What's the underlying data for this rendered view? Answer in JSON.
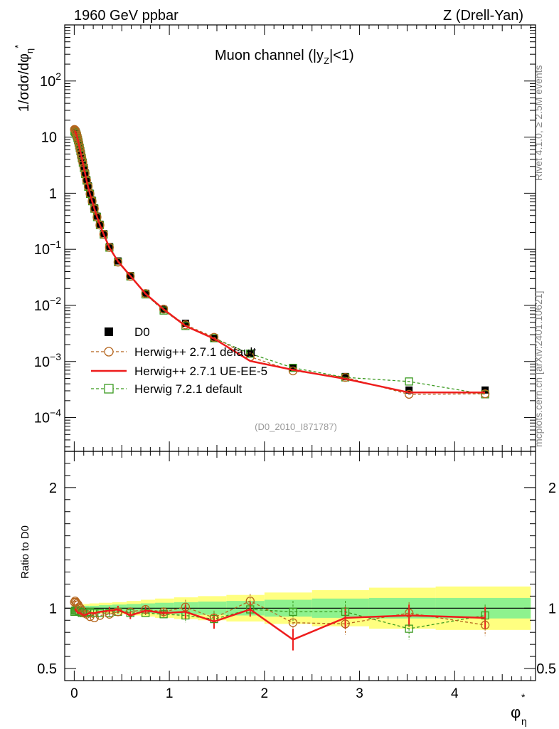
{
  "header": {
    "left": "1960 GeV ppbar",
    "right": "Z (Drell-Yan)",
    "panel_title": "Muon channel (|y",
    "panel_title_sub": "Z",
    "panel_title_tail": "|<1)",
    "analysis_tag": "(D0_2010_I871787)",
    "side_top": "Rivet 4.1.0, ≥ 2.5M events",
    "side_bottom": "mcplots.cern.ch [arXiv:2401.10621]"
  },
  "chart_data": {
    "type": "line",
    "title": "Muon channel (|y_Z|<1)",
    "ylabel_main": "1/σdσ/dφ*_η",
    "ylabel_ratio": "Ratio to D0",
    "xlabel": "φ*_η",
    "xlim": [
      -0.1,
      4.85
    ],
    "ylim_main": [
      2.5e-05,
      1000
    ],
    "ylim_ratio": [
      0.4,
      2.3
    ],
    "x_ticks": [
      0,
      1,
      2,
      3,
      4
    ],
    "x_tick_labels": [
      "0",
      "1",
      "2",
      "3",
      "4"
    ],
    "y_ticks_main": [
      {
        "label": "10",
        "sup": "2",
        "value": 100
      },
      {
        "label": "10",
        "sup": "",
        "value": 10
      },
      {
        "label": "1",
        "sup": "",
        "value": 1
      },
      {
        "label": "10",
        "sup": "−1",
        "value": 0.1
      },
      {
        "label": "10",
        "sup": "−2",
        "value": 0.01
      },
      {
        "label": "10",
        "sup": "−3",
        "value": 0.001
      },
      {
        "label": "10",
        "sup": "−4",
        "value": 0.0001
      }
    ],
    "y_ticks_ratio": [
      {
        "label": "2",
        "value": 2
      },
      {
        "label": "1",
        "value": 1
      },
      {
        "label": "0.5",
        "value": 0.5
      }
    ],
    "x": [
      0.002,
      0.006,
      0.01,
      0.014,
      0.019,
      0.024,
      0.029,
      0.034,
      0.04,
      0.046,
      0.052,
      0.058,
      0.065,
      0.072,
      0.08,
      0.09,
      0.102,
      0.115,
      0.13,
      0.147,
      0.166,
      0.188,
      0.212,
      0.24,
      0.27,
      0.31,
      0.37,
      0.46,
      0.59,
      0.75,
      0.94,
      1.17,
      1.47,
      1.85,
      2.3,
      2.85,
      3.52,
      4.32
    ],
    "series": [
      {
        "name": "D0",
        "marker": "filled-square",
        "color": "#000000",
        "values": [
          13.0,
          12.9,
          12.7,
          12.4,
          11.9,
          11.3,
          10.6,
          9.9,
          9.0,
          8.1,
          7.2,
          6.5,
          5.7,
          5.0,
          4.3,
          3.6,
          2.9,
          2.3,
          1.75,
          1.35,
          1.0,
          0.75,
          0.55,
          0.39,
          0.28,
          0.19,
          0.112,
          0.062,
          0.034,
          0.0165,
          0.0085,
          0.0048,
          0.0026,
          0.00138,
          0.00078,
          0.00054,
          0.00031,
          0.00031
        ]
      },
      {
        "name": "Herwig++ 2.7.1 default",
        "marker": "open-circle",
        "color": "#b5651d",
        "dashed": true,
        "values": [
          13.7,
          13.6,
          13.3,
          12.9,
          12.4,
          11.7,
          10.9,
          10.1,
          9.2,
          8.2,
          7.3,
          6.5,
          5.7,
          5.0,
          4.25,
          3.55,
          2.85,
          2.25,
          1.7,
          1.32,
          0.97,
          0.72,
          0.53,
          0.375,
          0.27,
          0.185,
          0.108,
          0.059,
          0.033,
          0.0163,
          0.0086,
          0.0045,
          0.0027,
          0.00121,
          0.00068,
          0.00052,
          0.00026,
          0.000265
        ]
      },
      {
        "name": "Herwig++ 2.7.1 UE-EE-5",
        "marker": "line",
        "color": "#ee1c1c",
        "values": [
          12.9,
          12.8,
          12.5,
          12.0,
          11.5,
          10.9,
          10.2,
          9.5,
          8.7,
          7.9,
          7.0,
          6.3,
          5.5,
          4.8,
          4.15,
          3.5,
          2.8,
          2.2,
          1.67,
          1.28,
          0.96,
          0.72,
          0.53,
          0.375,
          0.27,
          0.185,
          0.107,
          0.061,
          0.0335,
          0.0161,
          0.0085,
          0.0043,
          0.00255,
          0.00102,
          0.00071,
          0.00049,
          0.00028,
          0.00028
        ]
      },
      {
        "name": "Herwig 7.2.1 default",
        "marker": "open-square",
        "color": "#3a9a1f",
        "dashed": true,
        "values": [
          12.7,
          12.6,
          12.4,
          12.1,
          11.6,
          11.0,
          10.3,
          9.6,
          8.8,
          8.0,
          7.1,
          6.4,
          5.6,
          4.9,
          4.2,
          3.5,
          2.8,
          2.2,
          1.68,
          1.3,
          0.97,
          0.72,
          0.53,
          0.375,
          0.27,
          0.183,
          0.107,
          0.059,
          0.0328,
          0.0157,
          0.0081,
          0.0043,
          0.0026,
          0.00138,
          0.00077,
          0.00052,
          0.00044,
          0.00026
        ]
      }
    ],
    "ratio": {
      "x": [
        0.002,
        0.01,
        0.019,
        0.029,
        0.04,
        0.052,
        0.065,
        0.08,
        0.102,
        0.13,
        0.166,
        0.212,
        0.27,
        0.37,
        0.46,
        0.59,
        0.75,
        0.94,
        1.17,
        1.47,
        1.85,
        2.3,
        2.85,
        3.52,
        4.32
      ],
      "series": [
        {
          "name": "Herwig++ 2.7.1 default",
          "values": [
            1.05,
            1.06,
            1.05,
            1.04,
            1.03,
            1.01,
            1.0,
            0.98,
            0.96,
            0.95,
            0.93,
            0.92,
            0.94,
            0.95,
            0.97,
            0.97,
            0.99,
            0.97,
            1.01,
            0.92,
            1.06,
            0.88,
            0.87,
            0.96,
            0.86
          ]
        },
        {
          "name": "Herwig++ 2.7.1 UE-EE-5",
          "values": [
            0.99,
            0.99,
            0.98,
            0.97,
            0.96,
            0.96,
            0.96,
            0.95,
            0.94,
            0.95,
            0.96,
            0.96,
            0.97,
            0.98,
            0.99,
            0.94,
            0.98,
            0.96,
            0.97,
            0.89,
            0.99,
            0.74,
            0.92,
            0.94,
            0.92
          ]
        },
        {
          "name": "Herwig 7.2.1 default",
          "values": [
            0.97,
            0.98,
            0.98,
            0.98,
            0.98,
            0.97,
            0.97,
            0.96,
            0.96,
            0.96,
            0.97,
            0.96,
            0.96,
            0.96,
            0.97,
            0.96,
            0.96,
            0.95,
            0.94,
            0.91,
            0.99,
            0.97,
            0.97,
            0.83,
            0.94
          ]
        }
      ],
      "band_edges": [
        -0.02,
        0.08,
        0.16,
        0.26,
        0.4,
        0.55,
        0.7,
        0.85,
        1.05,
        1.3,
        1.6,
        2.0,
        2.5,
        3.1,
        3.8,
        4.8
      ],
      "band_inner": [
        0.02,
        0.02,
        0.02,
        0.025,
        0.03,
        0.035,
        0.04,
        0.045,
        0.05,
        0.055,
        0.06,
        0.07,
        0.08,
        0.085,
        0.085
      ],
      "band_outer": [
        0.03,
        0.035,
        0.04,
        0.045,
        0.05,
        0.06,
        0.07,
        0.08,
        0.09,
        0.1,
        0.11,
        0.13,
        0.15,
        0.17,
        0.18
      ]
    },
    "legend_position": "center-left"
  }
}
